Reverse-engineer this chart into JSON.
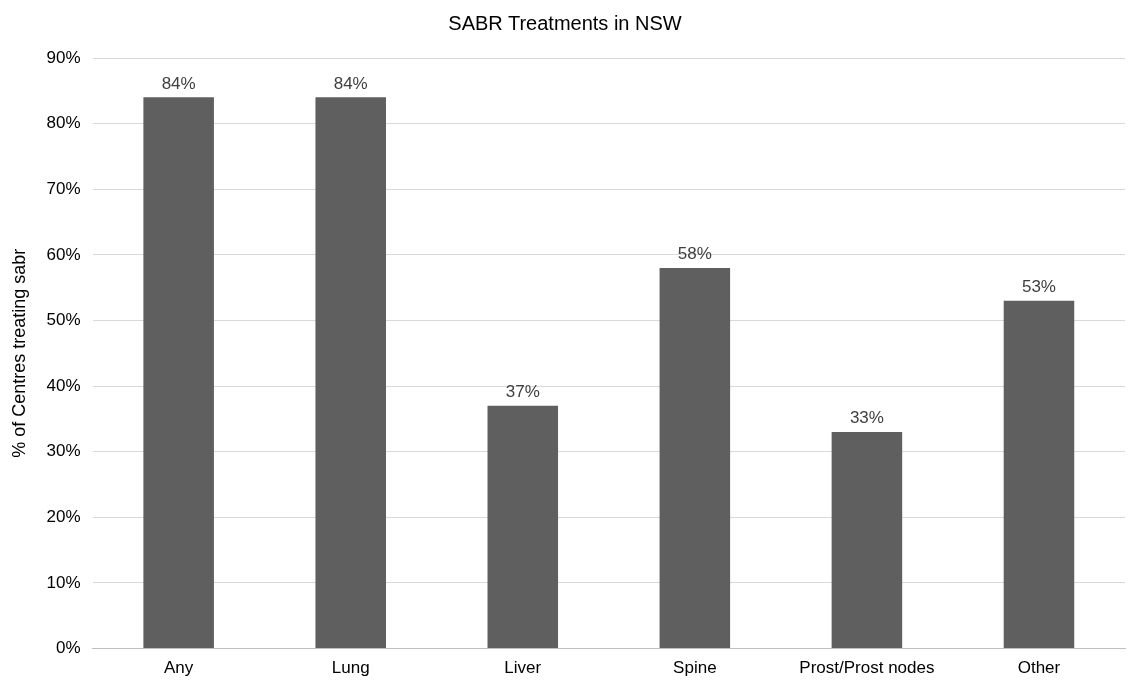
{
  "chart_data": {
    "type": "bar",
    "title": "SABR Treatments in NSW",
    "ylabel": "% of Centres treating sabr",
    "categories": [
      "Any",
      "Lung",
      "Liver",
      "Spine",
      "Prost/Prost nodes",
      "Other"
    ],
    "values": [
      84,
      84,
      37,
      58,
      33,
      53
    ],
    "value_labels": [
      "84%",
      "84%",
      "37%",
      "58%",
      "33%",
      "53%"
    ],
    "color": "#5f5f5f",
    "ylim": [
      0,
      90
    ],
    "yticks": [
      {
        "value": 0,
        "label": "0%"
      },
      {
        "value": 10,
        "label": "10%"
      },
      {
        "value": 20,
        "label": "20%"
      },
      {
        "value": 30,
        "label": "30%"
      },
      {
        "value": 40,
        "label": "40%"
      },
      {
        "value": 50,
        "label": "50%"
      },
      {
        "value": 60,
        "label": "60%"
      },
      {
        "value": 70,
        "label": "70%"
      },
      {
        "value": 80,
        "label": "80%"
      },
      {
        "value": 90,
        "label": "90%"
      }
    ],
    "grid": "y",
    "legend": false
  }
}
